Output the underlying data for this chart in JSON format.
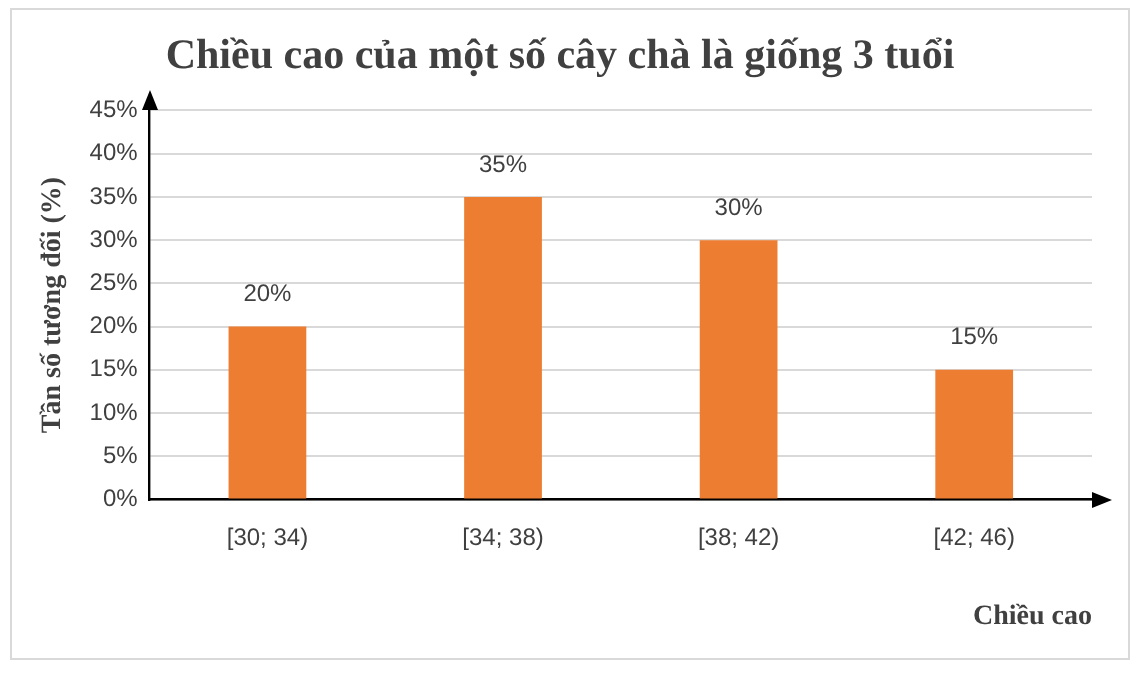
{
  "chart_data": {
    "type": "bar",
    "title": "Chiều cao của một số cây chà là giống 3 tuổi",
    "xlabel": "Chiều cao",
    "ylabel": "Tần số tương đối (%)",
    "categories": [
      "[30; 34)",
      "[34; 38)",
      "[38; 42)",
      "[42; 46)"
    ],
    "values": [
      20,
      35,
      30,
      15
    ],
    "color": "#ed7d31",
    "value_labels": [
      "20%",
      "35%",
      "30%",
      "15%"
    ],
    "ylim": [
      0,
      45
    ],
    "yticks": [
      {
        "value": 0,
        "label": "0%"
      },
      {
        "value": 5,
        "label": "5%"
      },
      {
        "value": 10,
        "label": "10%"
      },
      {
        "value": 15,
        "label": "15%"
      },
      {
        "value": 20,
        "label": "20%"
      },
      {
        "value": 25,
        "label": "25%"
      },
      {
        "value": 30,
        "label": "30%"
      },
      {
        "value": 35,
        "label": "35%"
      },
      {
        "value": 40,
        "label": "40%"
      },
      {
        "value": 45,
        "label": "45%"
      }
    ],
    "grid": "y",
    "legend": false
  }
}
